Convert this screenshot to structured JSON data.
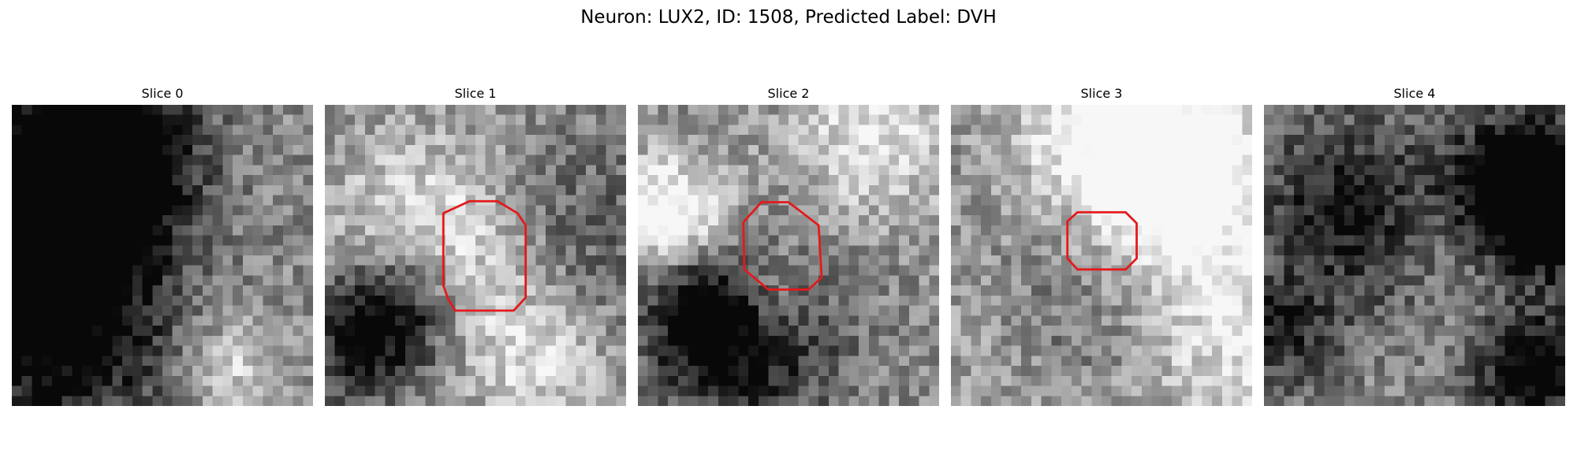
{
  "figure": {
    "title": "Neuron: LUX2, ID: 1508, Predicted Label: DVH"
  },
  "panels": [
    {
      "title": "Slice 0",
      "has_roi": false,
      "seed": 11
    },
    {
      "title": "Slice 1",
      "has_roi": true,
      "seed": 23
    },
    {
      "title": "Slice 2",
      "has_roi": true,
      "seed": 37
    },
    {
      "title": "Slice 3",
      "has_roi": true,
      "seed": 51
    },
    {
      "title": "Slice 4",
      "has_roi": false,
      "seed": 67
    }
  ],
  "colors": {
    "roi_outline": "#e31a1c",
    "colormap": "gray"
  }
}
